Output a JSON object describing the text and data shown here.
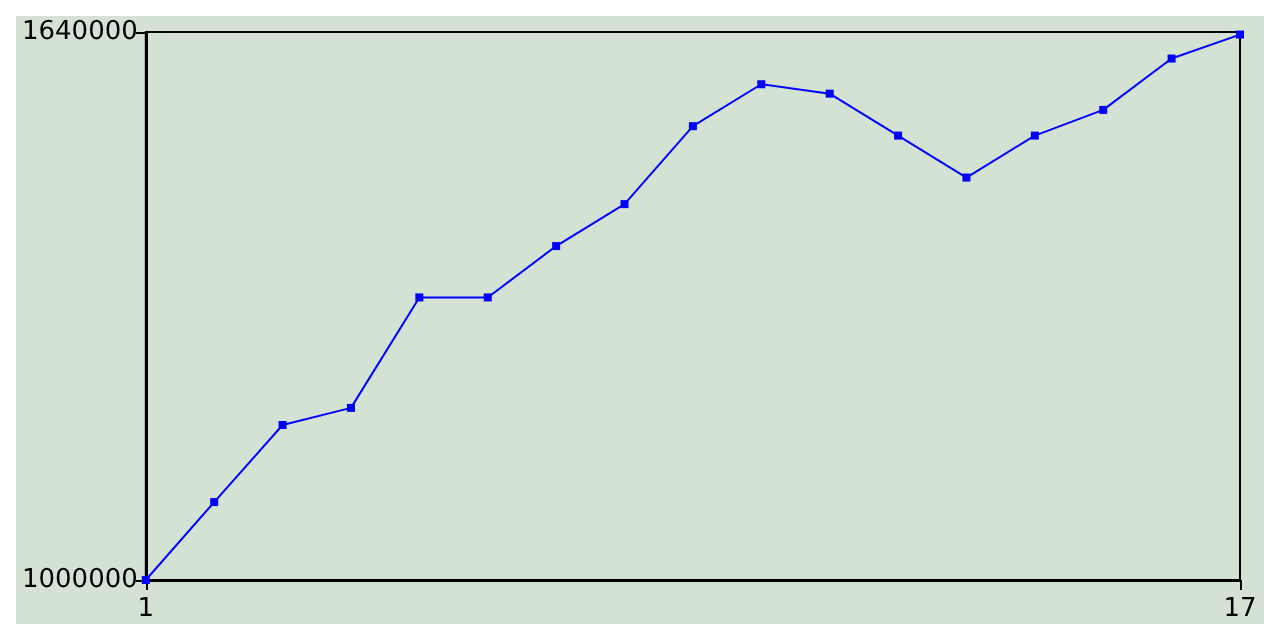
{
  "chart_data": {
    "type": "line",
    "x": [
      1,
      2,
      3,
      4,
      5,
      6,
      7,
      8,
      9,
      10,
      11,
      12,
      13,
      14,
      15,
      16,
      17
    ],
    "series": [
      {
        "color": "#0000ff",
        "values": [
          1000000,
          1091000,
          1181000,
          1201000,
          1330000,
          1330000,
          1390000,
          1439000,
          1530000,
          1579000,
          1568000,
          1519000,
          1470000,
          1519000,
          1549000,
          1609000,
          1637000
        ]
      }
    ],
    "xlim": [
      1,
      17
    ],
    "xticks": [
      1,
      17
    ],
    "ylim": [
      1000000,
      1640000
    ],
    "yticks": [
      1000000,
      1640000
    ],
    "marker": "square",
    "line_style": "solid"
  }
}
